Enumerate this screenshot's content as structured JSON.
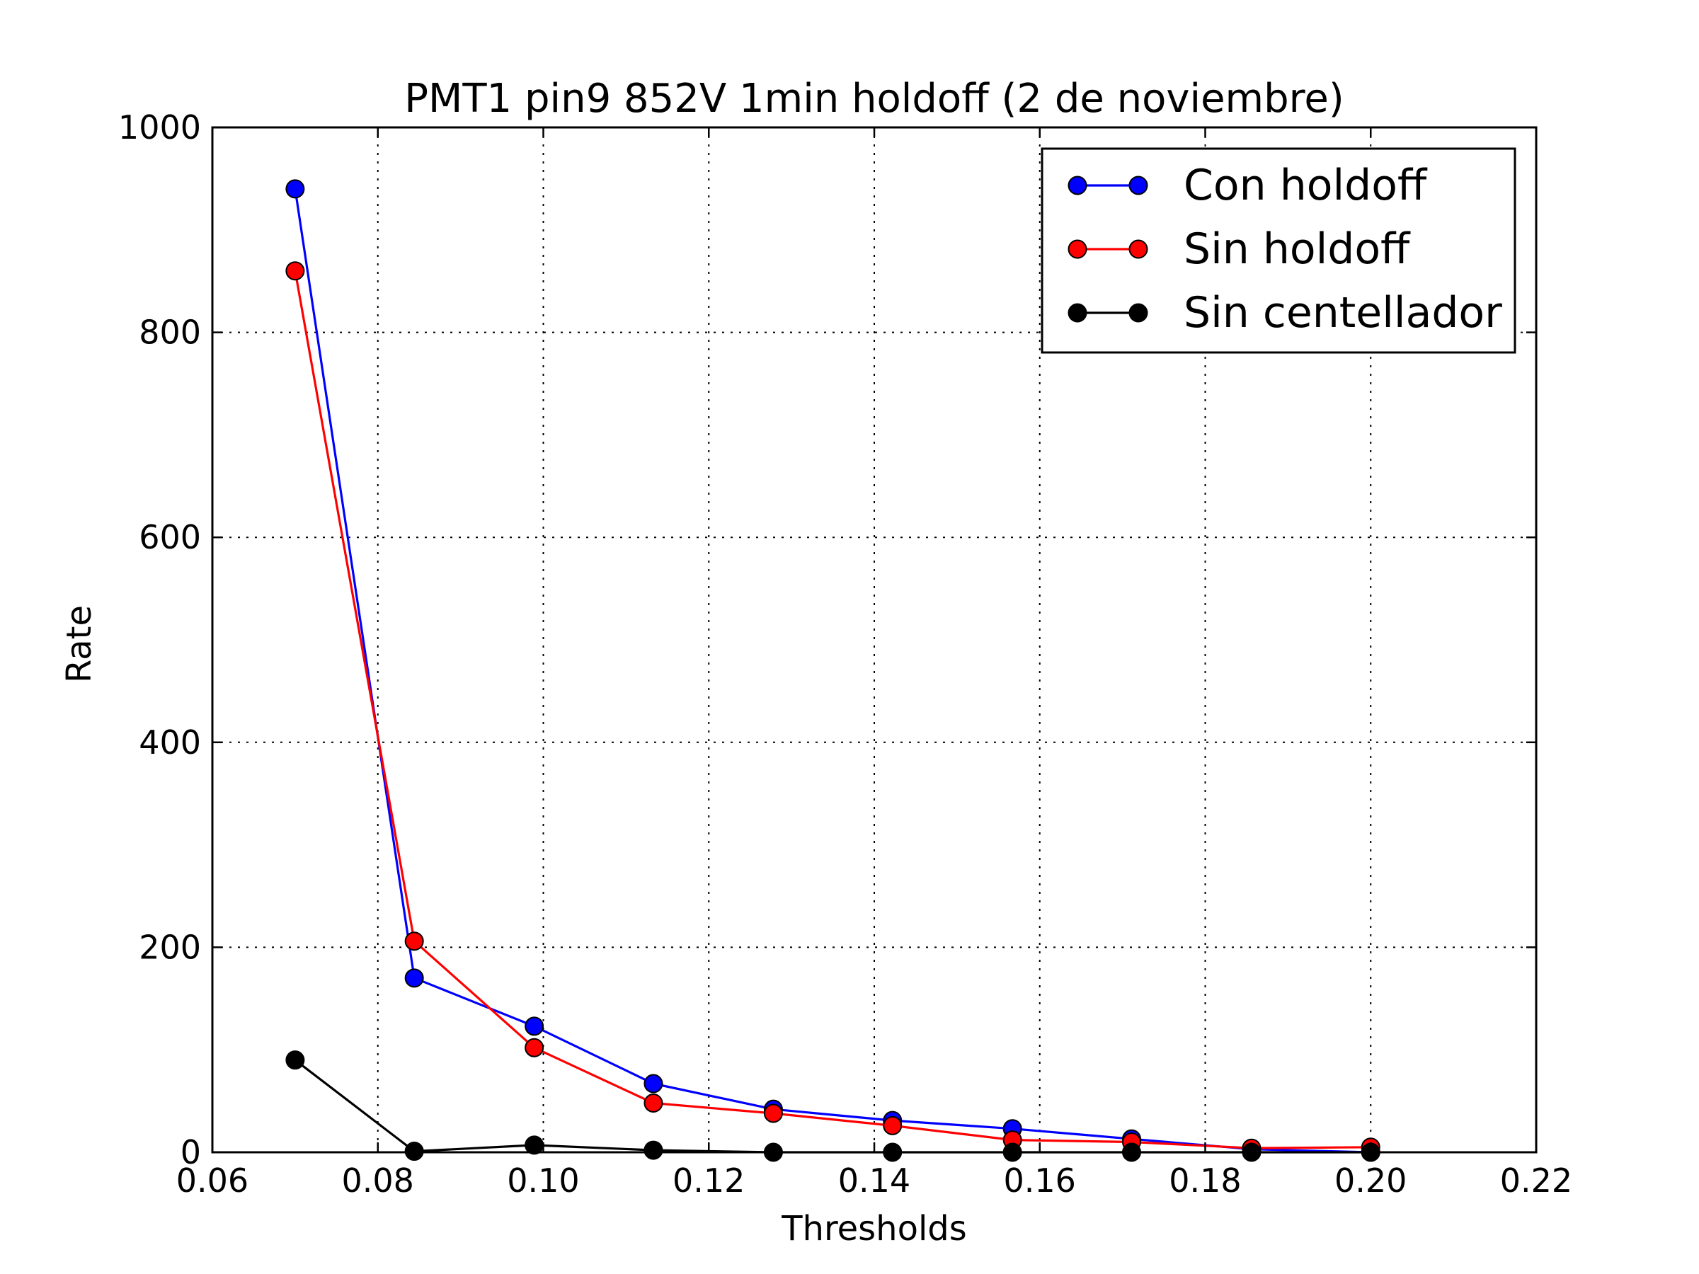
{
  "chart_data": {
    "type": "line",
    "title": "PMT1 pin9 852V 1min holdoff (2 de noviembre)",
    "xlabel": "Thresholds",
    "ylabel": "Rate",
    "xlim": [
      0.06,
      0.22
    ],
    "ylim": [
      0,
      1000
    ],
    "xticks": [
      0.06,
      0.08,
      0.1,
      0.12,
      0.14,
      0.16,
      0.18,
      0.2,
      0.22
    ],
    "xtick_labels": [
      "0.06",
      "0.08",
      "0.10",
      "0.12",
      "0.14",
      "0.16",
      "0.18",
      "0.20",
      "0.22"
    ],
    "yticks": [
      0,
      200,
      400,
      600,
      800,
      1000
    ],
    "ytick_labels": [
      "0",
      "200",
      "400",
      "600",
      "800",
      "1000"
    ],
    "grid": true,
    "legend_position": "top-right",
    "x": [
      0.07,
      0.0844,
      0.0989,
      0.1133,
      0.1278,
      0.1422,
      0.1567,
      0.1711,
      0.1856,
      0.2
    ],
    "series": [
      {
        "name": "Con holdoff",
        "color": "#0000ff",
        "values": [
          940,
          170,
          123,
          67,
          42,
          31,
          23,
          13,
          3,
          0
        ]
      },
      {
        "name": "Sin holdoff",
        "color": "#ff0000",
        "values": [
          860,
          206,
          102,
          48,
          38,
          26,
          12,
          10,
          4,
          5
        ]
      },
      {
        "name": "Sin centellador",
        "color": "#000000",
        "values": [
          90,
          1,
          7,
          2,
          0,
          0,
          0,
          0,
          0,
          0
        ]
      }
    ]
  }
}
